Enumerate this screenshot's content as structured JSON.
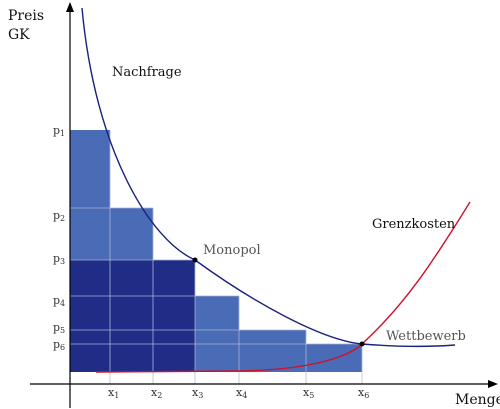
{
  "diagram": {
    "y_axis_title_line1": "Preis",
    "y_axis_title_line2": "GK",
    "x_axis_title": "Menge",
    "demand_label": "Nachfrage",
    "mc_label": "Grenzkosten",
    "monopoly_label": "Monopol",
    "competition_label": "Wettbewerb",
    "price_ticks": [
      {
        "base": "p",
        "sub": "1"
      },
      {
        "base": "p",
        "sub": "2"
      },
      {
        "base": "p",
        "sub": "3"
      },
      {
        "base": "p",
        "sub": "4"
      },
      {
        "base": "p",
        "sub": "5"
      },
      {
        "base": "p",
        "sub": "6"
      }
    ],
    "quantity_ticks": [
      {
        "base": "x",
        "sub": "1"
      },
      {
        "base": "x",
        "sub": "2"
      },
      {
        "base": "x",
        "sub": "3"
      },
      {
        "base": "x",
        "sub": "4"
      },
      {
        "base": "x",
        "sub": "5"
      },
      {
        "base": "x",
        "sub": "6"
      }
    ],
    "colors": {
      "demand_curve": "#1a237e",
      "mc_curve": "#d0102a",
      "bar_light": "#4a6bb5",
      "bar_dark": "#1f2d86",
      "grid_line": "#a9b3d6",
      "axis": "#000000"
    }
  }
}
